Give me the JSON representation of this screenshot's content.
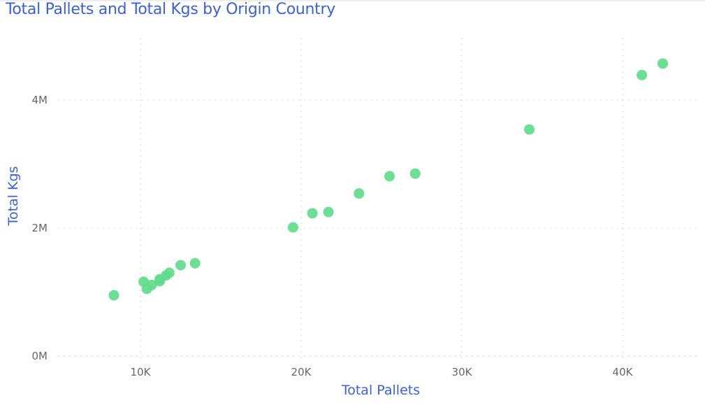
{
  "chart_data": {
    "type": "scatter",
    "title": "Total Pallets and Total Kgs by Origin Country",
    "xlabel": "Total Pallets",
    "ylabel": "Total Kgs",
    "x_ticks": [
      {
        "value": 10000,
        "label": "10K"
      },
      {
        "value": 20000,
        "label": "20K"
      },
      {
        "value": 30000,
        "label": "30K"
      },
      {
        "value": 40000,
        "label": "40K"
      }
    ],
    "y_ticks": [
      {
        "value": 0,
        "label": "0M"
      },
      {
        "value": 2000000,
        "label": "2M"
      },
      {
        "value": 4000000,
        "label": "4M"
      }
    ],
    "xlim": [
      5000,
      45000
    ],
    "ylim": [
      0,
      4900000
    ],
    "grid": true,
    "grid_style": "dotted",
    "legend": null,
    "marker_color": "#5fdc8b",
    "series": [
      {
        "name": "Origin Country",
        "points": [
          {
            "x": 8350,
            "y": 950000
          },
          {
            "x": 10200,
            "y": 1160000
          },
          {
            "x": 10400,
            "y": 1050000
          },
          {
            "x": 10700,
            "y": 1110000
          },
          {
            "x": 11200,
            "y": 1200000
          },
          {
            "x": 11200,
            "y": 1170000
          },
          {
            "x": 11600,
            "y": 1260000
          },
          {
            "x": 11800,
            "y": 1300000
          },
          {
            "x": 12500,
            "y": 1420000
          },
          {
            "x": 13400,
            "y": 1450000
          },
          {
            "x": 19500,
            "y": 2010000
          },
          {
            "x": 20700,
            "y": 2230000
          },
          {
            "x": 21700,
            "y": 2250000
          },
          {
            "x": 23600,
            "y": 2540000
          },
          {
            "x": 25500,
            "y": 2810000
          },
          {
            "x": 27100,
            "y": 2850000
          },
          {
            "x": 34200,
            "y": 3540000
          },
          {
            "x": 41200,
            "y": 4390000
          },
          {
            "x": 42500,
            "y": 4570000
          }
        ]
      }
    ]
  },
  "colors": {
    "title": "#3a62d8",
    "axis_title": "#3a62d8",
    "tick_label": "#666666",
    "grid": "#c8c8c8",
    "marker": "#5fdc8b"
  }
}
